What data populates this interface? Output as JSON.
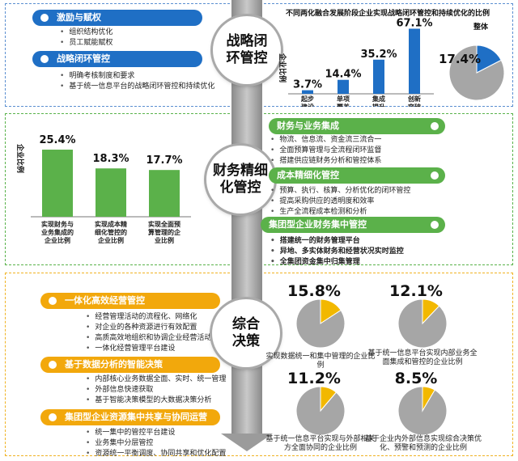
{
  "sections": {
    "strategy": {
      "circle_label": [
        "战略闭",
        "环管控"
      ],
      "banners": [
        "激励与赋权",
        "战略闭环管控"
      ],
      "lists": [
        [
          "组织结构优化",
          "员工赋能赋权"
        ],
        [
          "明确考核制度和要求",
          "基于统一信息平台的战略闭环管控和持续优化"
        ]
      ]
    },
    "finance": {
      "circle_label": [
        "财务精细",
        "化管控"
      ],
      "banners": [
        "财务与业务集成",
        "成本精细化管控",
        "集团型企业财务集中管控"
      ],
      "lists": [
        [
          "物流、信息流、资金流三流合一",
          "全面预算管理与全流程闭环监督",
          "搭建供应链财务分析和管控体系"
        ],
        [
          "预算、执行、核算、分析优化的闭环管控",
          "提高采购供应的透明度和效率",
          "生产全流程成本检测和分析"
        ],
        [
          "搭建统一的财务管理平台",
          "异地、多实体财务和经营状况实时监控",
          "全集团资金集中归集管理"
        ]
      ]
    },
    "decision": {
      "circle_label": [
        "综合",
        "决策"
      ],
      "banners": [
        "一体化高效经营管控",
        "基于数据分析的智能决策",
        "集团型企业资源集中共享与协同运营"
      ],
      "lists": [
        [
          "经营管理活动的流程化、网络化",
          "对企业的各种资源进行有效配置",
          "高质高效地组织和协调企业经营活动",
          "一体化经营管理平台建设"
        ],
        [
          "内部核心业务数据全面、实时、统一管理",
          "外部信息快速获取",
          "基于智能决策模型的大数据决策分析"
        ],
        [
          "统一集中的管控平台建设",
          "业务集中分层管控",
          "资源统一平衡调度、协同共享和优化配置"
        ]
      ]
    }
  },
  "chart_data": [
    {
      "type": "bar",
      "title": "不同两化融合发展阶段企业实现战略闭环管控和持续优化的比例",
      "ylabel": "企业比例",
      "categories": [
        "起步建设",
        "单项覆盖",
        "集成提升",
        "创新突破"
      ],
      "values": [
        3.7,
        14.4,
        35.2,
        67.1
      ],
      "value_labels": [
        "3.7%",
        "14.4%",
        "35.2%",
        "67.1%"
      ],
      "ylim": [
        0,
        70
      ],
      "color": "#1f6fc5"
    },
    {
      "type": "pie",
      "title": "整体",
      "values": [
        17.4,
        82.6
      ],
      "value_label": "17.4%",
      "colors": [
        "#1f6fc5",
        "#a6a6a6"
      ]
    },
    {
      "type": "bar",
      "ylabel": "企业比例",
      "categories": [
        "实现财务与业务集成的企业比例",
        "实现成本精细化管控的企业比例",
        "实现全面预算管理的企业比例"
      ],
      "values": [
        25.4,
        18.3,
        17.7
      ],
      "value_labels": [
        "25.4%",
        "18.3%",
        "17.7%"
      ],
      "ylim": [
        0,
        30
      ],
      "color": "#5bb14a"
    },
    {
      "type": "pie",
      "values": [
        15.8,
        84.2
      ],
      "value_label": "15.8%",
      "caption": "实现数据统一和集中管理的企业比例",
      "colors": [
        "#f2b800",
        "#a6a6a6"
      ]
    },
    {
      "type": "pie",
      "values": [
        12.1,
        87.9
      ],
      "value_label": "12.1%",
      "caption": "基于统一信息平台实现内部业务全面集成和管控的企业比例",
      "colors": [
        "#f2b800",
        "#a6a6a6"
      ]
    },
    {
      "type": "pie",
      "values": [
        11.2,
        88.8
      ],
      "value_label": "11.2%",
      "caption": "基于统一信息平台实现与外部相关方全面协同的企业比例",
      "colors": [
        "#f2b800",
        "#a6a6a6"
      ]
    },
    {
      "type": "pie",
      "values": [
        8.5,
        91.5
      ],
      "value_label": "8.5%",
      "caption": "基于企业内外部信息实现综合决策优化、预警和预测的企业比例",
      "colors": [
        "#f2b800",
        "#a6a6a6"
      ]
    }
  ]
}
